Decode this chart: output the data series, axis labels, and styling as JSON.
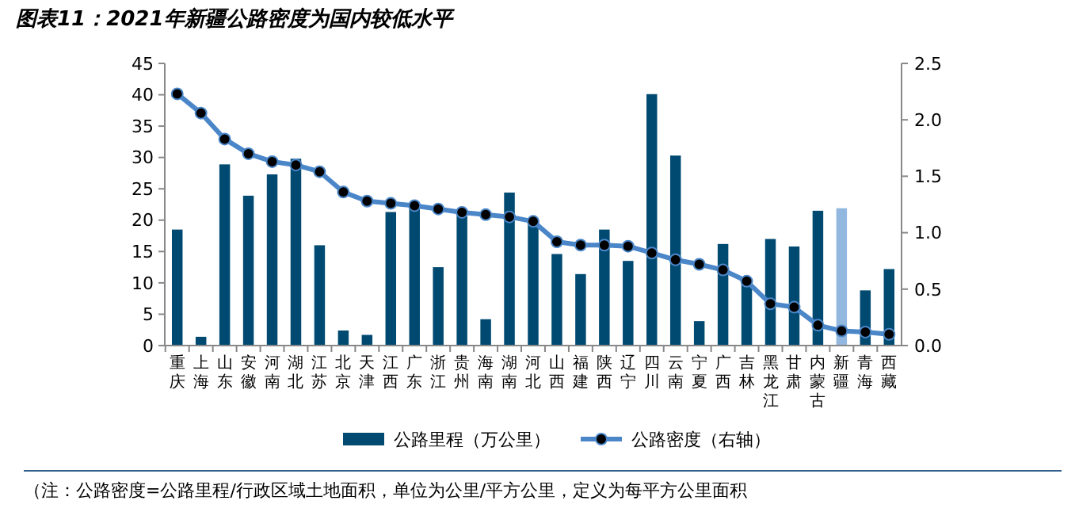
{
  "chart_data": {
    "type": "bar",
    "title": "图表11：2021年新疆公路密度为国内较低水平",
    "categories": [
      "重庆",
      "上海",
      "山东",
      "安徽",
      "河南",
      "湖北",
      "江苏",
      "北京",
      "天津",
      "江西",
      "广东",
      "浙江",
      "贵州",
      "海南",
      "湖南",
      "河北",
      "山西",
      "福建",
      "陕西",
      "辽宁",
      "四川",
      "云南",
      "宁夏",
      "广西",
      "吉林",
      "黑龙江",
      "甘肃",
      "内蒙古",
      "新疆",
      "青海",
      "西藏"
    ],
    "series": [
      {
        "name": "公路里程（万公里）",
        "color": "#004a72",
        "colors": [
          "#004a72",
          "#004a72",
          "#004a72",
          "#004a72",
          "#004a72",
          "#004a72",
          "#004a72",
          "#004a72",
          "#004a72",
          "#004a72",
          "#004a72",
          "#004a72",
          "#004a72",
          "#004a72",
          "#004a72",
          "#004a72",
          "#004a72",
          "#004a72",
          "#004a72",
          "#004a72",
          "#004a72",
          "#004a72",
          "#004a72",
          "#004a72",
          "#004a72",
          "#004a72",
          "#004a72",
          "#004a72",
          "#93b8df",
          "#004a72",
          "#004a72"
        ],
        "values": [
          18.5,
          1.4,
          28.9,
          23.9,
          27.3,
          29.8,
          16.0,
          2.4,
          1.7,
          21.3,
          22.3,
          12.5,
          21.0,
          4.2,
          24.4,
          20.2,
          14.6,
          11.4,
          18.5,
          13.5,
          40.1,
          30.3,
          3.9,
          16.2,
          10.0,
          17.0,
          15.8,
          21.5,
          21.9,
          8.8,
          12.2
        ]
      },
      {
        "name": "公路密度（右轴）",
        "type": "line",
        "axis": "y2",
        "color": "#4a86c8",
        "marker": "circle",
        "line_style": "solid",
        "values": [
          2.23,
          2.06,
          1.83,
          1.7,
          1.63,
          1.6,
          1.54,
          1.36,
          1.28,
          1.26,
          1.24,
          1.21,
          1.18,
          1.16,
          1.14,
          1.1,
          0.92,
          0.89,
          0.89,
          0.88,
          0.82,
          0.76,
          0.72,
          0.67,
          0.57,
          0.37,
          0.34,
          0.18,
          0.13,
          0.12,
          0.1
        ]
      }
    ],
    "ylim": [
      0,
      45
    ],
    "yticks": [
      0,
      5,
      10,
      15,
      20,
      25,
      30,
      35,
      40,
      45
    ],
    "y2lim": [
      0,
      2.5
    ],
    "y2ticks": [
      {
        "value": 0,
        "label": "0.0"
      },
      {
        "value": 0.5,
        "label": "0.5"
      },
      {
        "value": 1,
        "label": "1.0"
      },
      {
        "value": 1.5,
        "label": "1.5"
      },
      {
        "value": 2,
        "label": "2.0"
      },
      {
        "value": 2.5,
        "label": "2.5"
      }
    ],
    "grid": false,
    "legend": "bottom",
    "annotations": [
      "（注：公路密度=公路里程/行政区域土地面积，单位为公里/平方公里，定义为每平方公里面积"
    ]
  }
}
